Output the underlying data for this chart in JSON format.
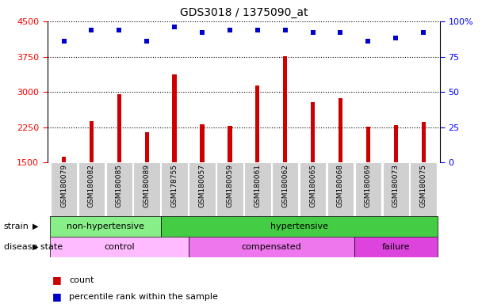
{
  "title": "GDS3018 / 1375090_at",
  "samples": [
    "GSM180079",
    "GSM180082",
    "GSM180085",
    "GSM180089",
    "GSM178755",
    "GSM180057",
    "GSM180059",
    "GSM180061",
    "GSM180062",
    "GSM180065",
    "GSM180068",
    "GSM180069",
    "GSM180073",
    "GSM180075"
  ],
  "counts": [
    1620,
    2380,
    2960,
    2140,
    3380,
    2320,
    2280,
    3140,
    3760,
    2780,
    2860,
    2260,
    2300,
    2360
  ],
  "percentile_ranks": [
    86,
    94,
    94,
    86,
    96,
    92,
    94,
    94,
    94,
    92,
    92,
    86,
    88,
    92
  ],
  "ymin": 1500,
  "ymax": 4500,
  "yticks": [
    1500,
    2250,
    3000,
    3750,
    4500
  ],
  "right_yticks": [
    0,
    25,
    50,
    75,
    100
  ],
  "bar_color": "#cc0000",
  "dot_color": "#0000cc",
  "bar_width": 0.15,
  "strain_groups": [
    {
      "label": "non-hypertensive",
      "start": 0,
      "end": 4,
      "color": "#88ee88"
    },
    {
      "label": "hypertensive",
      "start": 4,
      "end": 14,
      "color": "#44cc44"
    }
  ],
  "disease_groups": [
    {
      "label": "control",
      "start": 0,
      "end": 5,
      "color": "#ffbbff"
    },
    {
      "label": "compensated",
      "start": 5,
      "end": 11,
      "color": "#ee77ee"
    },
    {
      "label": "failure",
      "start": 11,
      "end": 14,
      "color": "#dd44dd"
    }
  ],
  "strain_label": "strain",
  "disease_label": "disease state",
  "legend_count": "count",
  "legend_percentile": "percentile rank within the sample",
  "bg_color": "#ffffff",
  "xtick_bg": "#d0d0d0"
}
